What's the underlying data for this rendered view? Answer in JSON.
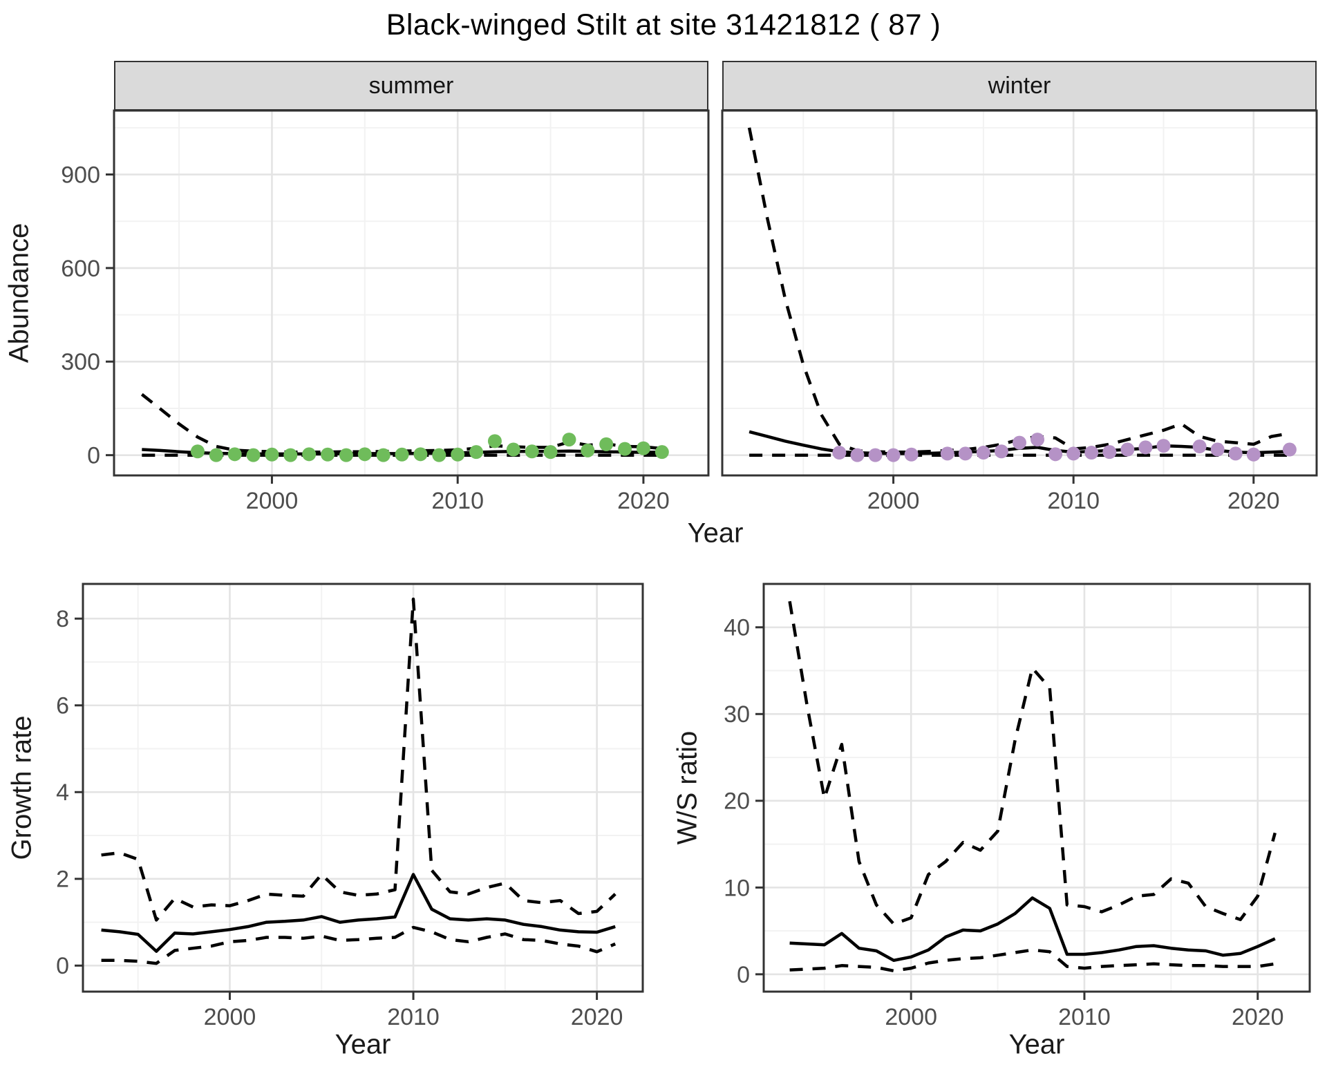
{
  "page_title": "Black-winged Stilt at site 31421812 ( 87 )",
  "axes": {
    "abundance_label": "Abundance",
    "year_label": "Year",
    "growth_label": "Growth rate",
    "ws_label": "W/S ratio"
  },
  "colors": {
    "summer_point": "#6FBC5B",
    "winter_point": "#B592C6",
    "line": "#000000",
    "strip_bg": "#dadada",
    "panel_border": "#333333",
    "grid_major": "#e4e4e4",
    "grid_minor": "#f2f2f2",
    "tick_text": "#4d4d4d"
  },
  "chart_data": [
    {
      "id": "summer-abundance",
      "type": "line",
      "facet": "summer",
      "xlabel": "Year",
      "ylabel": "Abundance",
      "xlim": [
        1991.5,
        2023.5
      ],
      "ylim": [
        -65,
        1105
      ],
      "xticks": [
        2000,
        2010,
        2020
      ],
      "xminor": [
        1995,
        2005,
        2015
      ],
      "yticks": [
        0,
        300,
        600,
        900
      ],
      "yminor": [
        150,
        450,
        750,
        1050
      ],
      "series": [
        {
          "name": "upper-ci",
          "style": "dashed",
          "x": [
            1993,
            1994,
            1995,
            1996,
            1997,
            1998,
            1999,
            2000,
            2001,
            2002,
            2003,
            2004,
            2005,
            2006,
            2007,
            2008,
            2009,
            2010,
            2011,
            2012,
            2013,
            2014,
            2015,
            2016,
            2017,
            2018,
            2019,
            2020,
            2021
          ],
          "y": [
            195,
            148,
            100,
            58,
            28,
            16,
            13,
            11,
            10,
            10,
            10,
            11,
            11,
            12,
            13,
            14,
            15,
            17,
            22,
            30,
            27,
            25,
            25,
            42,
            32,
            36,
            28,
            27,
            21
          ]
        },
        {
          "name": "fit",
          "style": "solid",
          "x": [
            1993,
            1994,
            1995,
            1996,
            1997,
            1998,
            1999,
            2000,
            2001,
            2002,
            2003,
            2004,
            2005,
            2006,
            2007,
            2008,
            2009,
            2010,
            2011,
            2012,
            2013,
            2014,
            2015,
            2016,
            2017,
            2018,
            2019,
            2020,
            2021
          ],
          "y": [
            18,
            15,
            11,
            8,
            6,
            5,
            4,
            4,
            4,
            4,
            4,
            5,
            5,
            5,
            5,
            6,
            6,
            7,
            9,
            11,
            12,
            12,
            12,
            13,
            12,
            11,
            10,
            9,
            10
          ]
        },
        {
          "name": "lower-ci",
          "style": "dashed",
          "x": [
            1993,
            1994,
            1995,
            1996,
            1997,
            1998,
            1999,
            2000,
            2001,
            2002,
            2003,
            2004,
            2005,
            2006,
            2007,
            2008,
            2009,
            2010,
            2011,
            2012,
            2013,
            2014,
            2015,
            2016,
            2017,
            2018,
            2019,
            2020,
            2021
          ],
          "y": [
            0,
            0,
            0,
            0,
            0,
            0,
            0,
            0,
            0,
            0,
            0,
            0,
            0,
            0,
            0,
            0,
            0,
            0,
            0,
            0,
            0,
            0,
            0,
            0,
            0,
            0,
            0,
            0,
            0
          ]
        },
        {
          "name": "observed-counts",
          "style": "points",
          "color": "#6FBC5B",
          "x": [
            1996,
            1997,
            1998,
            1999,
            2000,
            2001,
            2002,
            2003,
            2004,
            2005,
            2006,
            2007,
            2008,
            2009,
            2010,
            2011,
            2012,
            2013,
            2014,
            2015,
            2016,
            2017,
            2018,
            2019,
            2020,
            2021
          ],
          "y": [
            12,
            0,
            3,
            0,
            2,
            0,
            3,
            2,
            0,
            3,
            0,
            2,
            3,
            0,
            2,
            10,
            45,
            18,
            12,
            10,
            50,
            15,
            35,
            20,
            22,
            10
          ]
        }
      ]
    },
    {
      "id": "winter-abundance",
      "type": "line",
      "facet": "winter",
      "xlabel": "Year",
      "ylabel": "Abundance",
      "xlim": [
        1990.5,
        2023.5
      ],
      "ylim": [
        -65,
        1105
      ],
      "xticks": [
        2000,
        2010,
        2020
      ],
      "xminor": [
        1995,
        2005,
        2015
      ],
      "yticks": [
        0,
        300,
        600,
        900
      ],
      "yminor": [
        150,
        450,
        750,
        1050
      ],
      "series": [
        {
          "name": "upper-ci",
          "style": "dashed",
          "x": [
            1992,
            1993,
            1994,
            1995,
            1996,
            1997,
            1998,
            1999,
            2000,
            2001,
            2002,
            2003,
            2004,
            2005,
            2006,
            2007,
            2008,
            2009,
            2010,
            2011,
            2012,
            2013,
            2014,
            2015,
            2016,
            2017,
            2018,
            2019,
            2020,
            2021,
            2022
          ],
          "y": [
            1050,
            760,
            500,
            290,
            130,
            35,
            14,
            11,
            10,
            10,
            12,
            15,
            18,
            25,
            35,
            50,
            60,
            55,
            20,
            25,
            35,
            50,
            65,
            80,
            100,
            60,
            45,
            40,
            35,
            60,
            70
          ]
        },
        {
          "name": "fit",
          "style": "solid",
          "x": [
            1992,
            1993,
            1994,
            1995,
            1996,
            1997,
            1998,
            1999,
            2000,
            2001,
            2002,
            2003,
            2004,
            2005,
            2006,
            2007,
            2008,
            2009,
            2010,
            2011,
            2012,
            2013,
            2014,
            2015,
            2016,
            2017,
            2018,
            2019,
            2020,
            2021,
            2022
          ],
          "y": [
            75,
            60,
            45,
            32,
            20,
            11,
            8,
            6,
            5,
            5,
            6,
            8,
            10,
            12,
            15,
            22,
            25,
            15,
            10,
            12,
            15,
            18,
            22,
            30,
            28,
            25,
            15,
            10,
            8,
            10,
            12
          ]
        },
        {
          "name": "lower-ci",
          "style": "dashed",
          "x": [
            1992,
            1993,
            1994,
            1995,
            1996,
            1997,
            1998,
            1999,
            2000,
            2001,
            2002,
            2003,
            2004,
            2005,
            2006,
            2007,
            2008,
            2009,
            2010,
            2011,
            2012,
            2013,
            2014,
            2015,
            2016,
            2017,
            2018,
            2019,
            2020,
            2021,
            2022
          ],
          "y": [
            0,
            0,
            0,
            0,
            0,
            0,
            0,
            0,
            0,
            0,
            0,
            0,
            0,
            0,
            0,
            0,
            0,
            0,
            0,
            0,
            0,
            0,
            0,
            0,
            0,
            0,
            0,
            0,
            0,
            0,
            0
          ]
        },
        {
          "name": "observed-counts",
          "style": "points",
          "color": "#B592C6",
          "x": [
            1997,
            1998,
            1999,
            2000,
            2001,
            2003,
            2004,
            2005,
            2006,
            2007,
            2008,
            2009,
            2010,
            2011,
            2012,
            2013,
            2014,
            2015,
            2017,
            2018,
            2019,
            2020,
            2022
          ],
          "y": [
            8,
            0,
            0,
            0,
            2,
            5,
            5,
            8,
            12,
            40,
            50,
            3,
            5,
            8,
            10,
            18,
            25,
            30,
            28,
            18,
            5,
            2,
            18
          ]
        }
      ]
    },
    {
      "id": "growth-rate",
      "type": "line",
      "xlabel": "Year",
      "ylabel": "Growth rate",
      "xlim": [
        1992,
        2022.5
      ],
      "ylim": [
        -0.6,
        8.8
      ],
      "xticks": [
        2000,
        2010,
        2020
      ],
      "xminor": [
        1995,
        2005,
        2015
      ],
      "yticks": [
        0,
        2,
        4,
        6,
        8
      ],
      "yminor": [
        1,
        3,
        5,
        7
      ],
      "series": [
        {
          "name": "upper-ci",
          "style": "dashed",
          "x": [
            1993,
            1994,
            1995,
            1996,
            1997,
            1998,
            1999,
            2000,
            2001,
            2002,
            2003,
            2004,
            2005,
            2006,
            2007,
            2008,
            2009,
            2010,
            2011,
            2012,
            2013,
            2014,
            2015,
            2016,
            2017,
            2018,
            2019,
            2020,
            2021
          ],
          "y": [
            2.55,
            2.6,
            2.45,
            1.05,
            1.55,
            1.35,
            1.4,
            1.38,
            1.5,
            1.65,
            1.62,
            1.6,
            2.1,
            1.7,
            1.62,
            1.65,
            1.75,
            8.45,
            2.2,
            1.7,
            1.65,
            1.8,
            1.9,
            1.5,
            1.45,
            1.5,
            1.2,
            1.25,
            1.65
          ]
        },
        {
          "name": "fit",
          "style": "solid",
          "x": [
            1993,
            1994,
            1995,
            1996,
            1997,
            1998,
            1999,
            2000,
            2001,
            2002,
            2003,
            2004,
            2005,
            2006,
            2007,
            2008,
            2009,
            2010,
            2011,
            2012,
            2013,
            2014,
            2015,
            2016,
            2017,
            2018,
            2019,
            2020,
            2021
          ],
          "y": [
            0.82,
            0.78,
            0.72,
            0.33,
            0.75,
            0.73,
            0.78,
            0.83,
            0.9,
            1.0,
            1.02,
            1.05,
            1.13,
            1.0,
            1.05,
            1.08,
            1.12,
            2.1,
            1.3,
            1.08,
            1.05,
            1.08,
            1.05,
            0.95,
            0.9,
            0.82,
            0.78,
            0.77,
            0.9
          ]
        },
        {
          "name": "lower-ci",
          "style": "dashed",
          "x": [
            1993,
            1994,
            1995,
            1996,
            1997,
            1998,
            1999,
            2000,
            2001,
            2002,
            2003,
            2004,
            2005,
            2006,
            2007,
            2008,
            2009,
            2010,
            2011,
            2012,
            2013,
            2014,
            2015,
            2016,
            2017,
            2018,
            2019,
            2020,
            2021
          ],
          "y": [
            0.12,
            0.12,
            0.1,
            0.05,
            0.35,
            0.4,
            0.45,
            0.55,
            0.58,
            0.65,
            0.65,
            0.63,
            0.68,
            0.58,
            0.6,
            0.63,
            0.65,
            0.88,
            0.78,
            0.6,
            0.55,
            0.65,
            0.73,
            0.6,
            0.58,
            0.5,
            0.45,
            0.32,
            0.5
          ]
        }
      ]
    },
    {
      "id": "ws-ratio",
      "type": "line",
      "xlabel": "Year",
      "ylabel": "W/S ratio",
      "xlim": [
        1991.5,
        2023
      ],
      "ylim": [
        -2,
        45
      ],
      "xticks": [
        2000,
        2010,
        2020
      ],
      "xminor": [
        1995,
        2005,
        2015
      ],
      "yticks": [
        0,
        10,
        20,
        30,
        40
      ],
      "yminor": [
        5,
        15,
        25,
        35
      ],
      "series": [
        {
          "name": "upper-ci",
          "style": "dashed",
          "x": [
            1993,
            1994,
            1995,
            1996,
            1997,
            1998,
            1999,
            2000,
            2001,
            2002,
            2003,
            2004,
            2005,
            2006,
            2007,
            2008,
            2009,
            2010,
            2011,
            2012,
            2013,
            2014,
            2015,
            2016,
            2017,
            2018,
            2019,
            2020,
            2021
          ],
          "y": [
            43,
            31,
            20.3,
            26.5,
            13,
            8,
            5.8,
            6.5,
            11.5,
            13,
            15.2,
            14.3,
            16.5,
            27,
            35.3,
            33,
            8,
            7.8,
            7.2,
            8,
            9,
            9.2,
            11,
            10.5,
            7.8,
            7,
            6.3,
            9,
            16.3
          ]
        },
        {
          "name": "fit",
          "style": "solid",
          "x": [
            1993,
            1994,
            1995,
            1996,
            1997,
            1998,
            1999,
            2000,
            2001,
            2002,
            2003,
            2004,
            2005,
            2006,
            2007,
            2008,
            2009,
            2010,
            2011,
            2012,
            2013,
            2014,
            2015,
            2016,
            2017,
            2018,
            2019,
            2020,
            2021
          ],
          "y": [
            3.6,
            3.5,
            3.4,
            4.7,
            3.0,
            2.7,
            1.6,
            2.0,
            2.8,
            4.3,
            5.1,
            5.0,
            5.8,
            7.0,
            8.8,
            7.6,
            2.3,
            2.3,
            2.5,
            2.8,
            3.2,
            3.3,
            3.0,
            2.8,
            2.7,
            2.2,
            2.4,
            3.2,
            4.1
          ]
        },
        {
          "name": "lower-ci",
          "style": "dashed",
          "x": [
            1993,
            1994,
            1995,
            1996,
            1997,
            1998,
            1999,
            2000,
            2001,
            2002,
            2003,
            2004,
            2005,
            2006,
            2007,
            2008,
            2009,
            2010,
            2011,
            2012,
            2013,
            2014,
            2015,
            2016,
            2017,
            2018,
            2019,
            2020,
            2021
          ],
          "y": [
            0.5,
            0.6,
            0.7,
            1.0,
            0.9,
            0.8,
            0.4,
            0.7,
            1.3,
            1.6,
            1.8,
            1.9,
            2.2,
            2.5,
            2.8,
            2.6,
            0.9,
            0.7,
            0.9,
            1.0,
            1.1,
            1.2,
            1.1,
            1.0,
            1.0,
            0.9,
            0.9,
            0.9,
            1.2
          ]
        }
      ]
    }
  ]
}
